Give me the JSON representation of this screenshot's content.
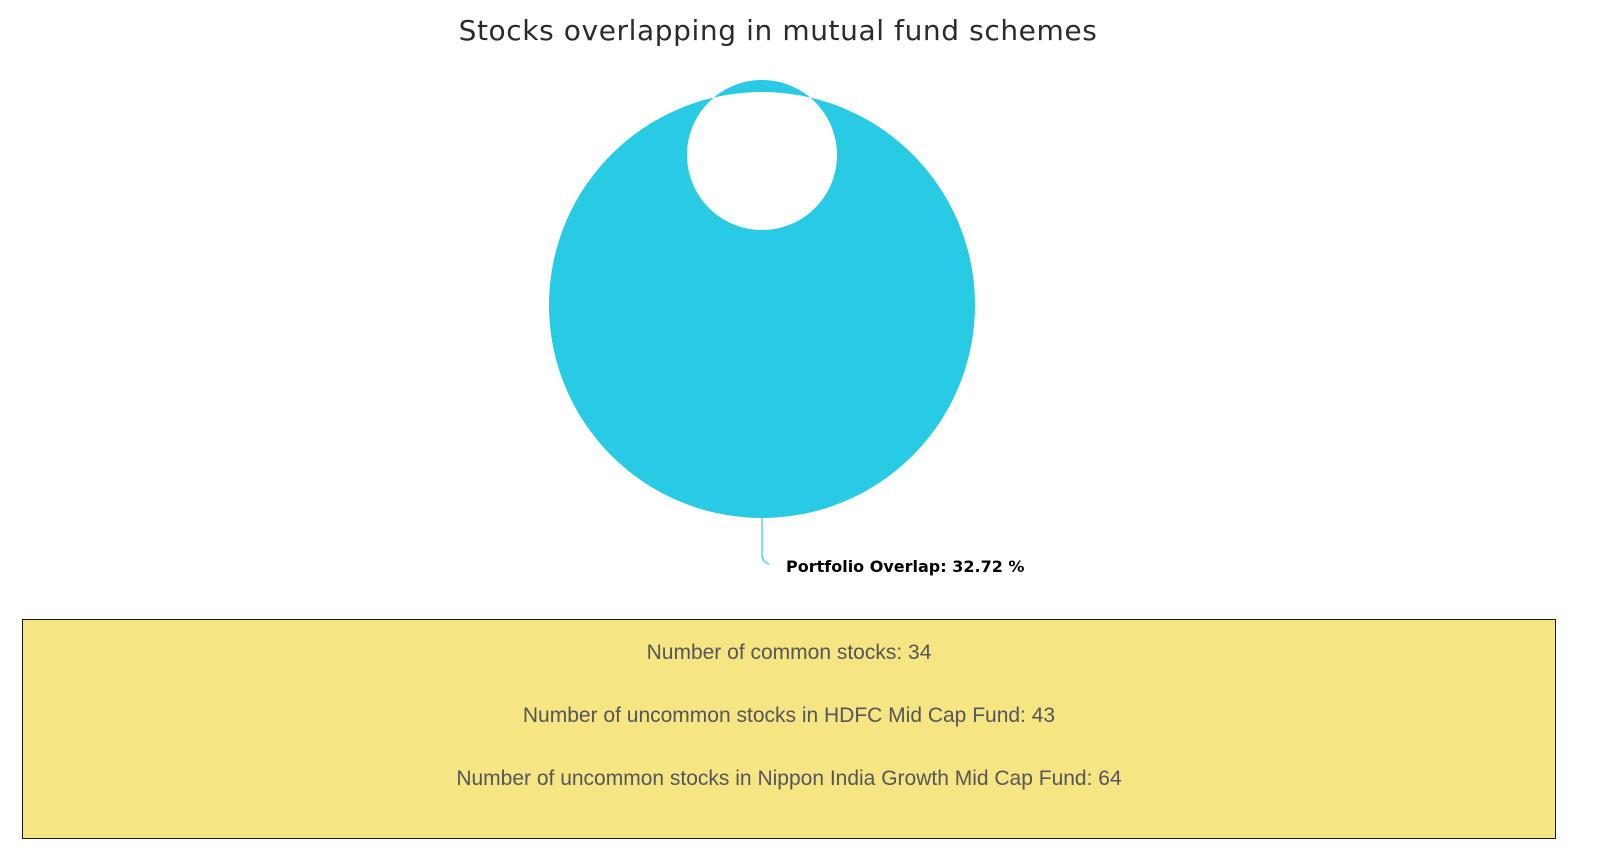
{
  "chart_data": {
    "type": "pie",
    "variant": "donut",
    "title": "Stocks overlapping in mutual fund schemes",
    "slices": [
      {
        "label": "Portfolio Overlap: 32.72 %",
        "value": 100,
        "color": "#29cbe4"
      }
    ],
    "slice_border_color": "#ffffff",
    "connector_color": "#29cbe4"
  },
  "summary": {
    "common": "Number of common stocks: 34",
    "uncommon_hdfc": "Number of uncommon stocks in HDFC Mid Cap Fund: 43",
    "uncommon_nippon": "Number of uncommon stocks in Nippon India Growth Mid Cap Fund: 64"
  },
  "colors": {
    "summary_background": "#f6e683",
    "summary_border": "#1a1a1a",
    "summary_text": "#55555a"
  }
}
